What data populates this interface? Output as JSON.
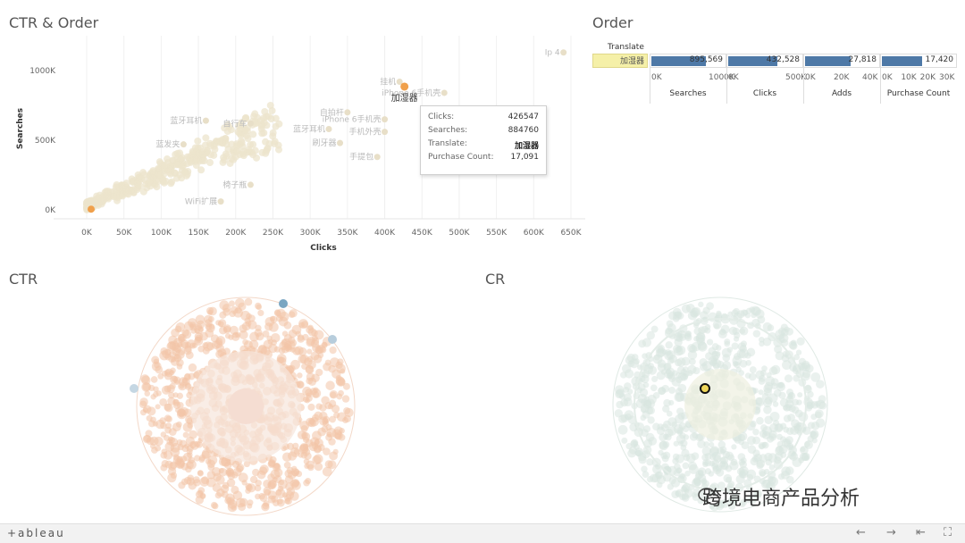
{
  "panels": {
    "ctr_order_title": "CTR & Order",
    "order_title": "Order",
    "ctr_title": "CTR",
    "cr_title": "CR"
  },
  "chart_data": [
    {
      "type": "scatter",
      "title": "CTR & Order",
      "xlabel": "Clicks",
      "ylabel": "Searches",
      "xlim": [
        0,
        650000
      ],
      "ylim": [
        0,
        1250000
      ],
      "x_ticks": [
        "0K",
        "50K",
        "100K",
        "150K",
        "200K",
        "250K",
        "300K",
        "350K",
        "400K",
        "450K",
        "500K",
        "550K",
        "600K",
        "650K"
      ],
      "y_ticks": [
        "0K",
        "500K",
        "1000K"
      ],
      "highlight": {
        "x": 426547,
        "y": 884760,
        "label": "加湿器"
      },
      "labeled_points": [
        {
          "x": 420000,
          "y": 920000,
          "label": "挂机"
        },
        {
          "x": 480000,
          "y": 840000,
          "label": "iPhone 6手机壳"
        },
        {
          "x": 640000,
          "y": 1130000,
          "label": "Ip 4"
        },
        {
          "x": 350000,
          "y": 700000,
          "label": "自拍杆"
        },
        {
          "x": 400000,
          "y": 650000,
          "label": "iPhone 6手机壳"
        },
        {
          "x": 160000,
          "y": 640000,
          "label": "蓝牙耳机"
        },
        {
          "x": 220000,
          "y": 620000,
          "label": "自行车"
        },
        {
          "x": 325000,
          "y": 580000,
          "label": "蓝牙耳机"
        },
        {
          "x": 400000,
          "y": 560000,
          "label": "手机外壳"
        },
        {
          "x": 130000,
          "y": 470000,
          "label": "蓝发夹"
        },
        {
          "x": 340000,
          "y": 480000,
          "label": "刷牙器"
        },
        {
          "x": 390000,
          "y": 380000,
          "label": "手提包"
        },
        {
          "x": 220000,
          "y": 180000,
          "label": "椅子瓶"
        },
        {
          "x": 180000,
          "y": 60000,
          "label": "WiFi扩展"
        }
      ]
    },
    {
      "type": "bar",
      "title": "Order",
      "row_header": "Translate",
      "row": "加湿器",
      "columns": [
        {
          "name": "Searches",
          "value": 895569,
          "value_text": "895,569",
          "ticks": [
            "0K",
            "1000K"
          ],
          "max": 1200000
        },
        {
          "name": "Clicks",
          "value": 432528,
          "value_text": "432,528",
          "ticks": [
            "0K",
            "500K"
          ],
          "max": 650000
        },
        {
          "name": "Adds",
          "value": 27818,
          "value_text": "27,818",
          "ticks": [
            "0K",
            "20K",
            "40K"
          ],
          "max": 45000
        },
        {
          "name": "Purchase Count",
          "value": 17420,
          "value_text": "17,420",
          "ticks": [
            "0K",
            "10K",
            "20K",
            "30K"
          ],
          "max": 32000
        }
      ]
    }
  ],
  "tooltip": {
    "clicks_label": "Clicks:",
    "clicks_value": "426547",
    "searches_label": "Searches:",
    "searches_value": "884760",
    "translate_label": "Translate:",
    "translate_value": "加湿器",
    "purchase_label": "Purchase Count:",
    "purchase_value": "17,091"
  },
  "footer": {
    "logo": "+ableau",
    "back": "←",
    "forward": "→",
    "first": "⇤",
    "fullscreen": "⛶"
  },
  "watermark": "跨境电商产品分析",
  "colors": {
    "accent_orange": "#f0a04b",
    "bar_blue": "#4e79a7",
    "faded_point": "#ece4cc",
    "ctr_bubble": "#f2c4a8",
    "cr_bubble": "#d9e6e0",
    "highlight_yellow": "#f5f0a8"
  }
}
